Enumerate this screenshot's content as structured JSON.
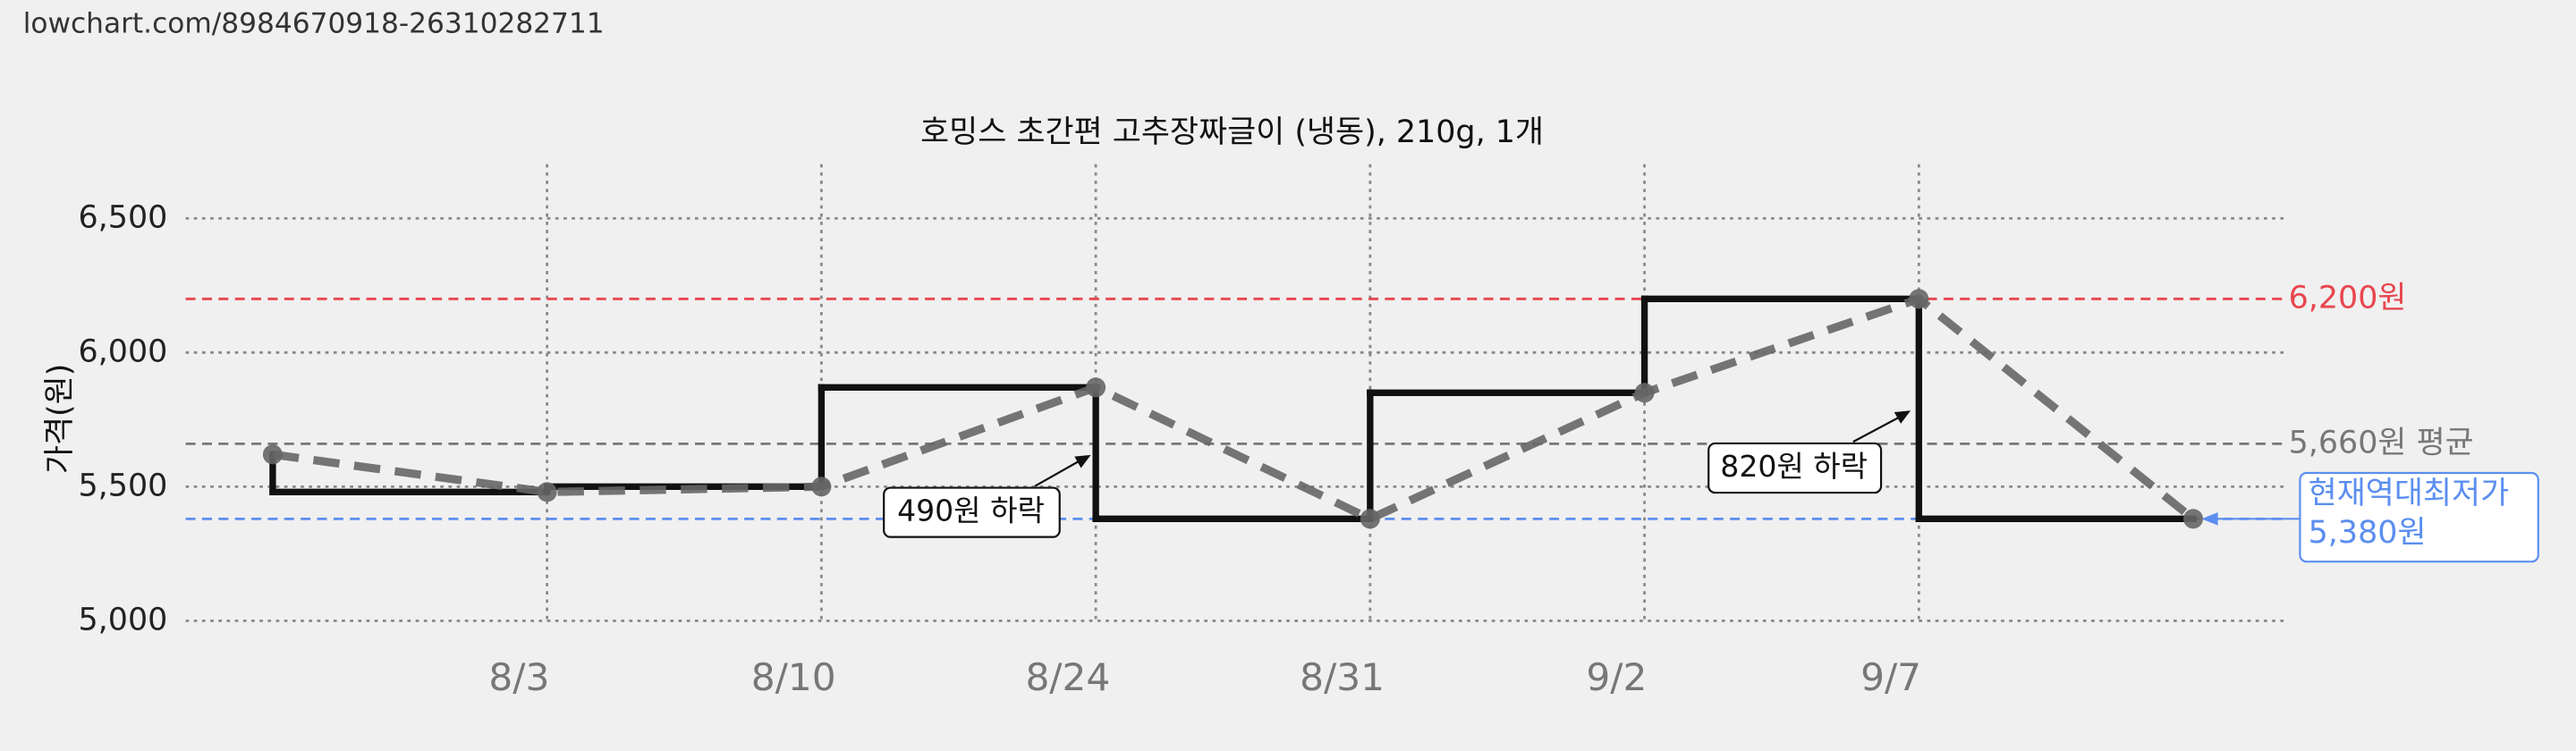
{
  "header": {
    "url": "lowchart.com/8984670918-26310282711"
  },
  "chart_data": {
    "type": "line",
    "title": "호밍스 초간편 고추장짜글이 (냉동), 210g, 1개",
    "y_label": "가격(원)",
    "categories": [
      null,
      "8/3",
      "8/10",
      "8/24",
      "8/31",
      "9/2",
      "9/7",
      null
    ],
    "values": [
      5620,
      5480,
      5500,
      5870,
      5380,
      5850,
      6200,
      5380
    ],
    "color": "#666666",
    "step_color": "#111111",
    "ylim": [
      5000,
      6500
    ],
    "yticks": [
      {
        "value": 5000,
        "label": "5,000"
      },
      {
        "value": 5500,
        "label": "5,500"
      },
      {
        "value": 6000,
        "label": "6,000"
      },
      {
        "value": 6500,
        "label": "6,500"
      }
    ],
    "grid": true,
    "reference_lines": [
      {
        "value": 6200,
        "label": "6,200원",
        "color": "#e8464e"
      },
      {
        "value": 5660,
        "label": "5,660원 평균",
        "color": "#777777"
      },
      {
        "value": 5380,
        "label": "5,380원",
        "title": "현재역대최저가",
        "color": "#5b8ef0"
      }
    ],
    "annotations": [
      "490원 하락",
      "820원 하락"
    ]
  }
}
